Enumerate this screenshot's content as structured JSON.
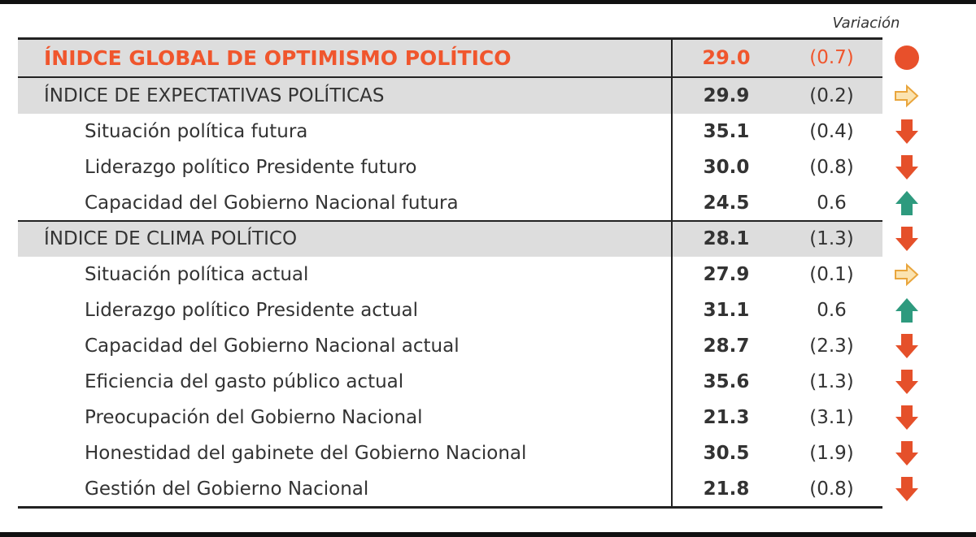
{
  "table": {
    "variation_header": "Variación",
    "rows": [
      {
        "kind": "global",
        "label": "ÍNIDCE GLOBAL DE OPTIMISMO POLÍTICO",
        "value": "29.0",
        "change": "(0.7)",
        "indicator": "circle"
      },
      {
        "kind": "index",
        "label": "ÍNDICE DE EXPECTATIVAS POLÍTICAS",
        "value": "29.9",
        "change": "(0.2)",
        "indicator": "right"
      },
      {
        "kind": "item",
        "label": "Situación política futura",
        "value": "35.1",
        "change": "(0.4)",
        "indicator": "down"
      },
      {
        "kind": "item",
        "label": "Liderazgo político Presidente futuro",
        "value": "30.0",
        "change": "(0.8)",
        "indicator": "down"
      },
      {
        "kind": "item",
        "label": "Capacidad del Gobierno Nacional futura",
        "value": "24.5",
        "change": "0.6",
        "indicator": "up"
      },
      {
        "kind": "index",
        "label": "ÍNDICE DE CLIMA POLÍTICO",
        "value": "28.1",
        "change": "(1.3)",
        "indicator": "down"
      },
      {
        "kind": "item",
        "label": "Situación política actual",
        "value": "27.9",
        "change": "(0.1)",
        "indicator": "right"
      },
      {
        "kind": "item",
        "label": "Liderazgo político Presidente actual",
        "value": "31.1",
        "change": "0.6",
        "indicator": "up"
      },
      {
        "kind": "item",
        "label": "Capacidad del Gobierno Nacional actual",
        "value": "28.7",
        "change": "(2.3)",
        "indicator": "down"
      },
      {
        "kind": "item",
        "label": "Eficiencia del gasto público actual",
        "value": "35.6",
        "change": "(1.3)",
        "indicator": "down"
      },
      {
        "kind": "item",
        "label": "Preocupación del Gobierno Nacional",
        "value": "21.3",
        "change": "(3.1)",
        "indicator": "down"
      },
      {
        "kind": "item",
        "label": "Honestidad del gabinete del Gobierno Nacional",
        "value": "30.5",
        "change": "(1.9)",
        "indicator": "down"
      },
      {
        "kind": "item",
        "label": "Gestión del Gobierno Nacional",
        "value": "21.8",
        "change": "(0.8)",
        "indicator": "down"
      }
    ]
  }
}
